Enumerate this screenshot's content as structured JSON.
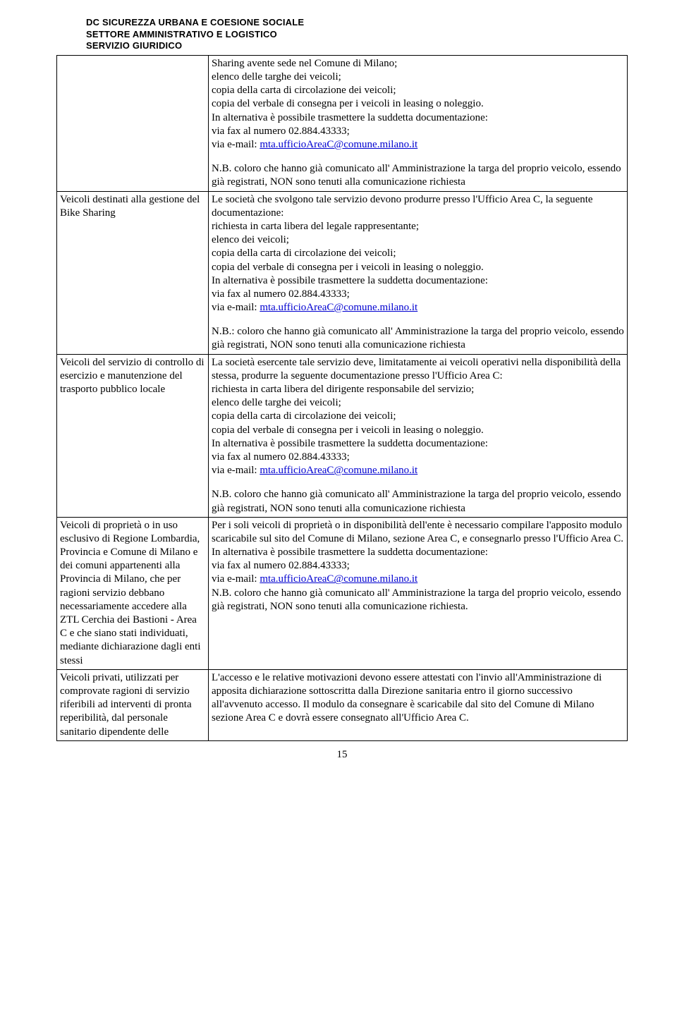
{
  "header": {
    "line1": "DC SICUREZZA URBANA E COESIONE SOCIALE",
    "line2": "SETTORE AMMINISTRATIVO E LOGISTICO",
    "line3": "SERVIZIO GIURIDICO"
  },
  "row1": {
    "cellRight": {
      "p1": "Sharing avente sede nel Comune di Milano;",
      "p2": "elenco delle targhe dei veicoli;",
      "p3": "copia della carta di circolazione dei veicoli;",
      "p4": "copia del verbale di consegna per i veicoli in leasing o noleggio.",
      "p5": "In alternativa è possibile trasmettere la suddetta documentazione:",
      "p6": "via fax al numero 02.884.43333;",
      "p7a": "via e-mail: ",
      "p7link": "mta.ufficioAreaC@comune.milano.it",
      "nb": "N.B. coloro che hanno già comunicato all' Amministrazione la targa del proprio veicolo, essendo già registrati, NON sono tenuti alla comunicazione richiesta"
    }
  },
  "row2": {
    "left": "Veicoli destinati alla gestione del Bike Sharing",
    "right": {
      "p1": "Le società che svolgono tale servizio devono produrre presso l'Ufficio Area C, la seguente documentazione:",
      "p2": "richiesta in carta libera del legale rappresentante;",
      "p3": "elenco dei veicoli;",
      "p4": "copia della carta di circolazione dei veicoli;",
      "p5": "copia del verbale di consegna per i veicoli in leasing o noleggio.",
      "p6": "In alternativa è possibile trasmettere la suddetta documentazione:",
      "p7": "via fax al numero 02.884.43333;",
      "p8a": "via e-mail: ",
      "p8link": "mta.ufficioAreaC@comune.milano.it",
      "nb": "N.B.: coloro che hanno già comunicato all' Amministrazione la targa del proprio veicolo, essendo già registrati, NON sono tenuti alla comunicazione richiesta"
    }
  },
  "row3": {
    "left": "Veicoli del servizio di controllo di esercizio e manutenzione del trasporto pubblico locale",
    "right": {
      "p1": "La società esercente tale servizio deve, limitatamente ai veicoli operativi nella disponibilità della stessa, produrre la seguente documentazione presso l'Ufficio Area C:",
      "p2": "richiesta in carta libera del dirigente responsabile del servizio;",
      "p3": "elenco delle targhe dei veicoli;",
      "p4": "copia della carta di circolazione dei veicoli;",
      "p5": "copia del verbale di consegna per i veicoli in leasing o noleggio.",
      "p6": "In alternativa è possibile trasmettere la suddetta documentazione:",
      "p7": "via fax al numero 02.884.43333;",
      "p8a": "via e-mail: ",
      "p8link": "mta.ufficioAreaC@comune.milano.it",
      "nb": "N.B. coloro che hanno già comunicato all' Amministrazione la targa del proprio veicolo, essendo già registrati, NON sono tenuti alla comunicazione richiesta"
    }
  },
  "row4": {
    "left": "Veicoli di proprietà o in uso esclusivo di Regione Lombardia, Provincia e Comune di Milano e dei comuni appartenenti alla Provincia di Milano, che per ragioni servizio debbano necessariamente accedere alla ZTL Cerchia dei Bastioni - Area C e che siano stati individuati, mediante dichiarazione dagli enti stessi",
    "right": {
      "p1": "Per i soli veicoli di proprietà o in disponibilità dell'ente è necessario compilare l'apposito modulo scaricabile sul sito del Comune di Milano, sezione Area C, e consegnarlo presso l'Ufficio Area C.",
      "p2": "In alternativa è possibile trasmettere la suddetta documentazione:",
      "p3": "via fax al numero 02.884.43333;",
      "p4a": "via e-mail: ",
      "p4link": "mta.ufficioAreaC@comune.milano.it",
      "nb": "N.B. coloro che hanno già comunicato all' Amministrazione la targa del proprio veicolo, essendo già registrati, NON sono tenuti alla comunicazione richiesta."
    }
  },
  "row5": {
    "left": "Veicoli privati, utilizzati per comprovate ragioni di servizio riferibili ad interventi di pronta reperibilità, dal personale sanitario dipendente delle",
    "right": "L'accesso e le relative motivazioni devono essere attestati con l'invio all'Amministrazione di apposita dichiarazione sottoscritta dalla Direzione sanitaria entro il giorno successivo all'avvenuto accesso. Il modulo da consegnare è scaricabile dal sito del Comune di Milano sezione Area C e dovrà essere consegnato all'Ufficio Area C."
  },
  "pageNumber": "15"
}
